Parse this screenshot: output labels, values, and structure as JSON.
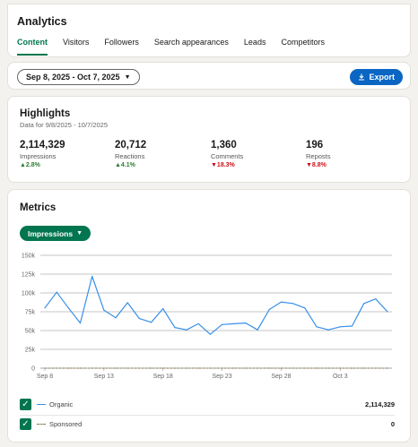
{
  "header": {
    "title": "Analytics",
    "tabs": [
      {
        "label": "Content",
        "active": true
      },
      {
        "label": "Visitors"
      },
      {
        "label": "Followers"
      },
      {
        "label": "Search appearances"
      },
      {
        "label": "Leads"
      },
      {
        "label": "Competitors"
      }
    ]
  },
  "toolbar": {
    "date_range": "Sep 8, 2025 - Oct 7, 2025",
    "export_label": "Export"
  },
  "highlights": {
    "title": "Highlights",
    "subtitle": "Data for 9/8/2025 - 10/7/2025",
    "stats": [
      {
        "value": "2,114,329",
        "label": "Impressions",
        "change": "▲2.8%",
        "direction": "up"
      },
      {
        "value": "20,712",
        "label": "Reactions",
        "change": "▲4.1%",
        "direction": "up"
      },
      {
        "value": "1,360",
        "label": "Comments",
        "change": "▼18.3%",
        "direction": "down"
      },
      {
        "value": "196",
        "label": "Reposts",
        "change": "▼8.8%",
        "direction": "down"
      }
    ]
  },
  "metrics": {
    "title": "Metrics",
    "dropdown_label": "Impressions",
    "legend": [
      {
        "name": "Organic",
        "value": "2,114,329",
        "color": "#378fe9",
        "style": "solid"
      },
      {
        "name": "Sponsored",
        "value": "0",
        "color": "#8a7d4c",
        "style": "dashed"
      }
    ]
  },
  "chart_data": {
    "type": "line",
    "x_tick_labels": [
      "Sep 8",
      "Sep 13",
      "Sep 18",
      "Sep 23",
      "Sep 28",
      "Oct 3"
    ],
    "y_tick_labels": [
      "0",
      "25k",
      "50k",
      "75k",
      "100k",
      "125k",
      "150k"
    ],
    "ylim": [
      0,
      150000
    ],
    "grid": true,
    "x": [
      "Sep 8",
      "Sep 9",
      "Sep 10",
      "Sep 11",
      "Sep 12",
      "Sep 13",
      "Sep 14",
      "Sep 15",
      "Sep 16",
      "Sep 17",
      "Sep 18",
      "Sep 19",
      "Sep 20",
      "Sep 21",
      "Sep 22",
      "Sep 23",
      "Sep 24",
      "Sep 25",
      "Sep 26",
      "Sep 27",
      "Sep 28",
      "Sep 29",
      "Sep 30",
      "Oct 1",
      "Oct 2",
      "Oct 3",
      "Oct 4",
      "Oct 5",
      "Oct 6",
      "Oct 7"
    ],
    "series": [
      {
        "name": "Organic",
        "color": "#378fe9",
        "values": [
          80000,
          101000,
          80000,
          60000,
          122000,
          77000,
          67000,
          87000,
          66000,
          61000,
          79000,
          54000,
          51000,
          59000,
          45000,
          58000,
          59000,
          60000,
          51000,
          78000,
          88000,
          86000,
          80000,
          55000,
          51000,
          55000,
          56000,
          86000,
          92000,
          75000
        ]
      },
      {
        "name": "Sponsored",
        "color": "#8a7d4c",
        "values": [
          0,
          0,
          0,
          0,
          0,
          0,
          0,
          0,
          0,
          0,
          0,
          0,
          0,
          0,
          0,
          0,
          0,
          0,
          0,
          0,
          0,
          0,
          0,
          0,
          0,
          0,
          0,
          0,
          0,
          0
        ]
      }
    ]
  }
}
